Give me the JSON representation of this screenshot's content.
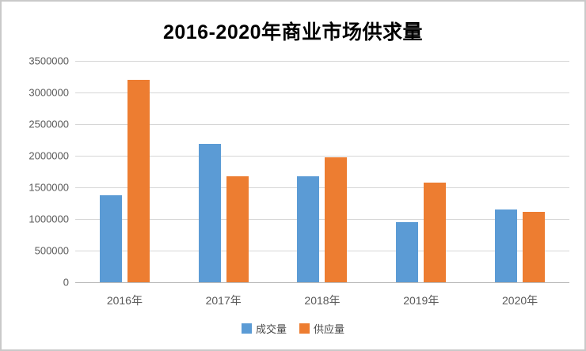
{
  "frame": {
    "background": "#ffffff",
    "border_color": "#c9c9c9"
  },
  "colors": {
    "series_blue": "#5B9BD5",
    "series_orange": "#ED7D31",
    "gridline": "#d6d6d6",
    "axis_line": "#b9b9b9",
    "tick_text": "#595959",
    "title_text": "#000000"
  },
  "chart_data": {
    "type": "bar",
    "title": "2016-2020年商业市场供求量",
    "categories": [
      "2016年",
      "2017年",
      "2018年",
      "2019年",
      "2020年"
    ],
    "series": [
      {
        "name": "成交量",
        "color": "#5B9BD5",
        "values": [
          1380000,
          2190000,
          1670000,
          950000,
          1150000
        ]
      },
      {
        "name": "供应量",
        "color": "#ED7D31",
        "values": [
          3200000,
          1670000,
          1970000,
          1580000,
          1110000
        ]
      }
    ],
    "xlabel": "",
    "ylabel": "",
    "ylim": [
      0,
      3500000
    ],
    "ytick_step": 500000,
    "yticks": [
      "3500000",
      "3000000",
      "2500000",
      "2000000",
      "1500000",
      "1000000",
      "500000",
      "0"
    ],
    "grid": true,
    "legend_position": "bottom"
  }
}
